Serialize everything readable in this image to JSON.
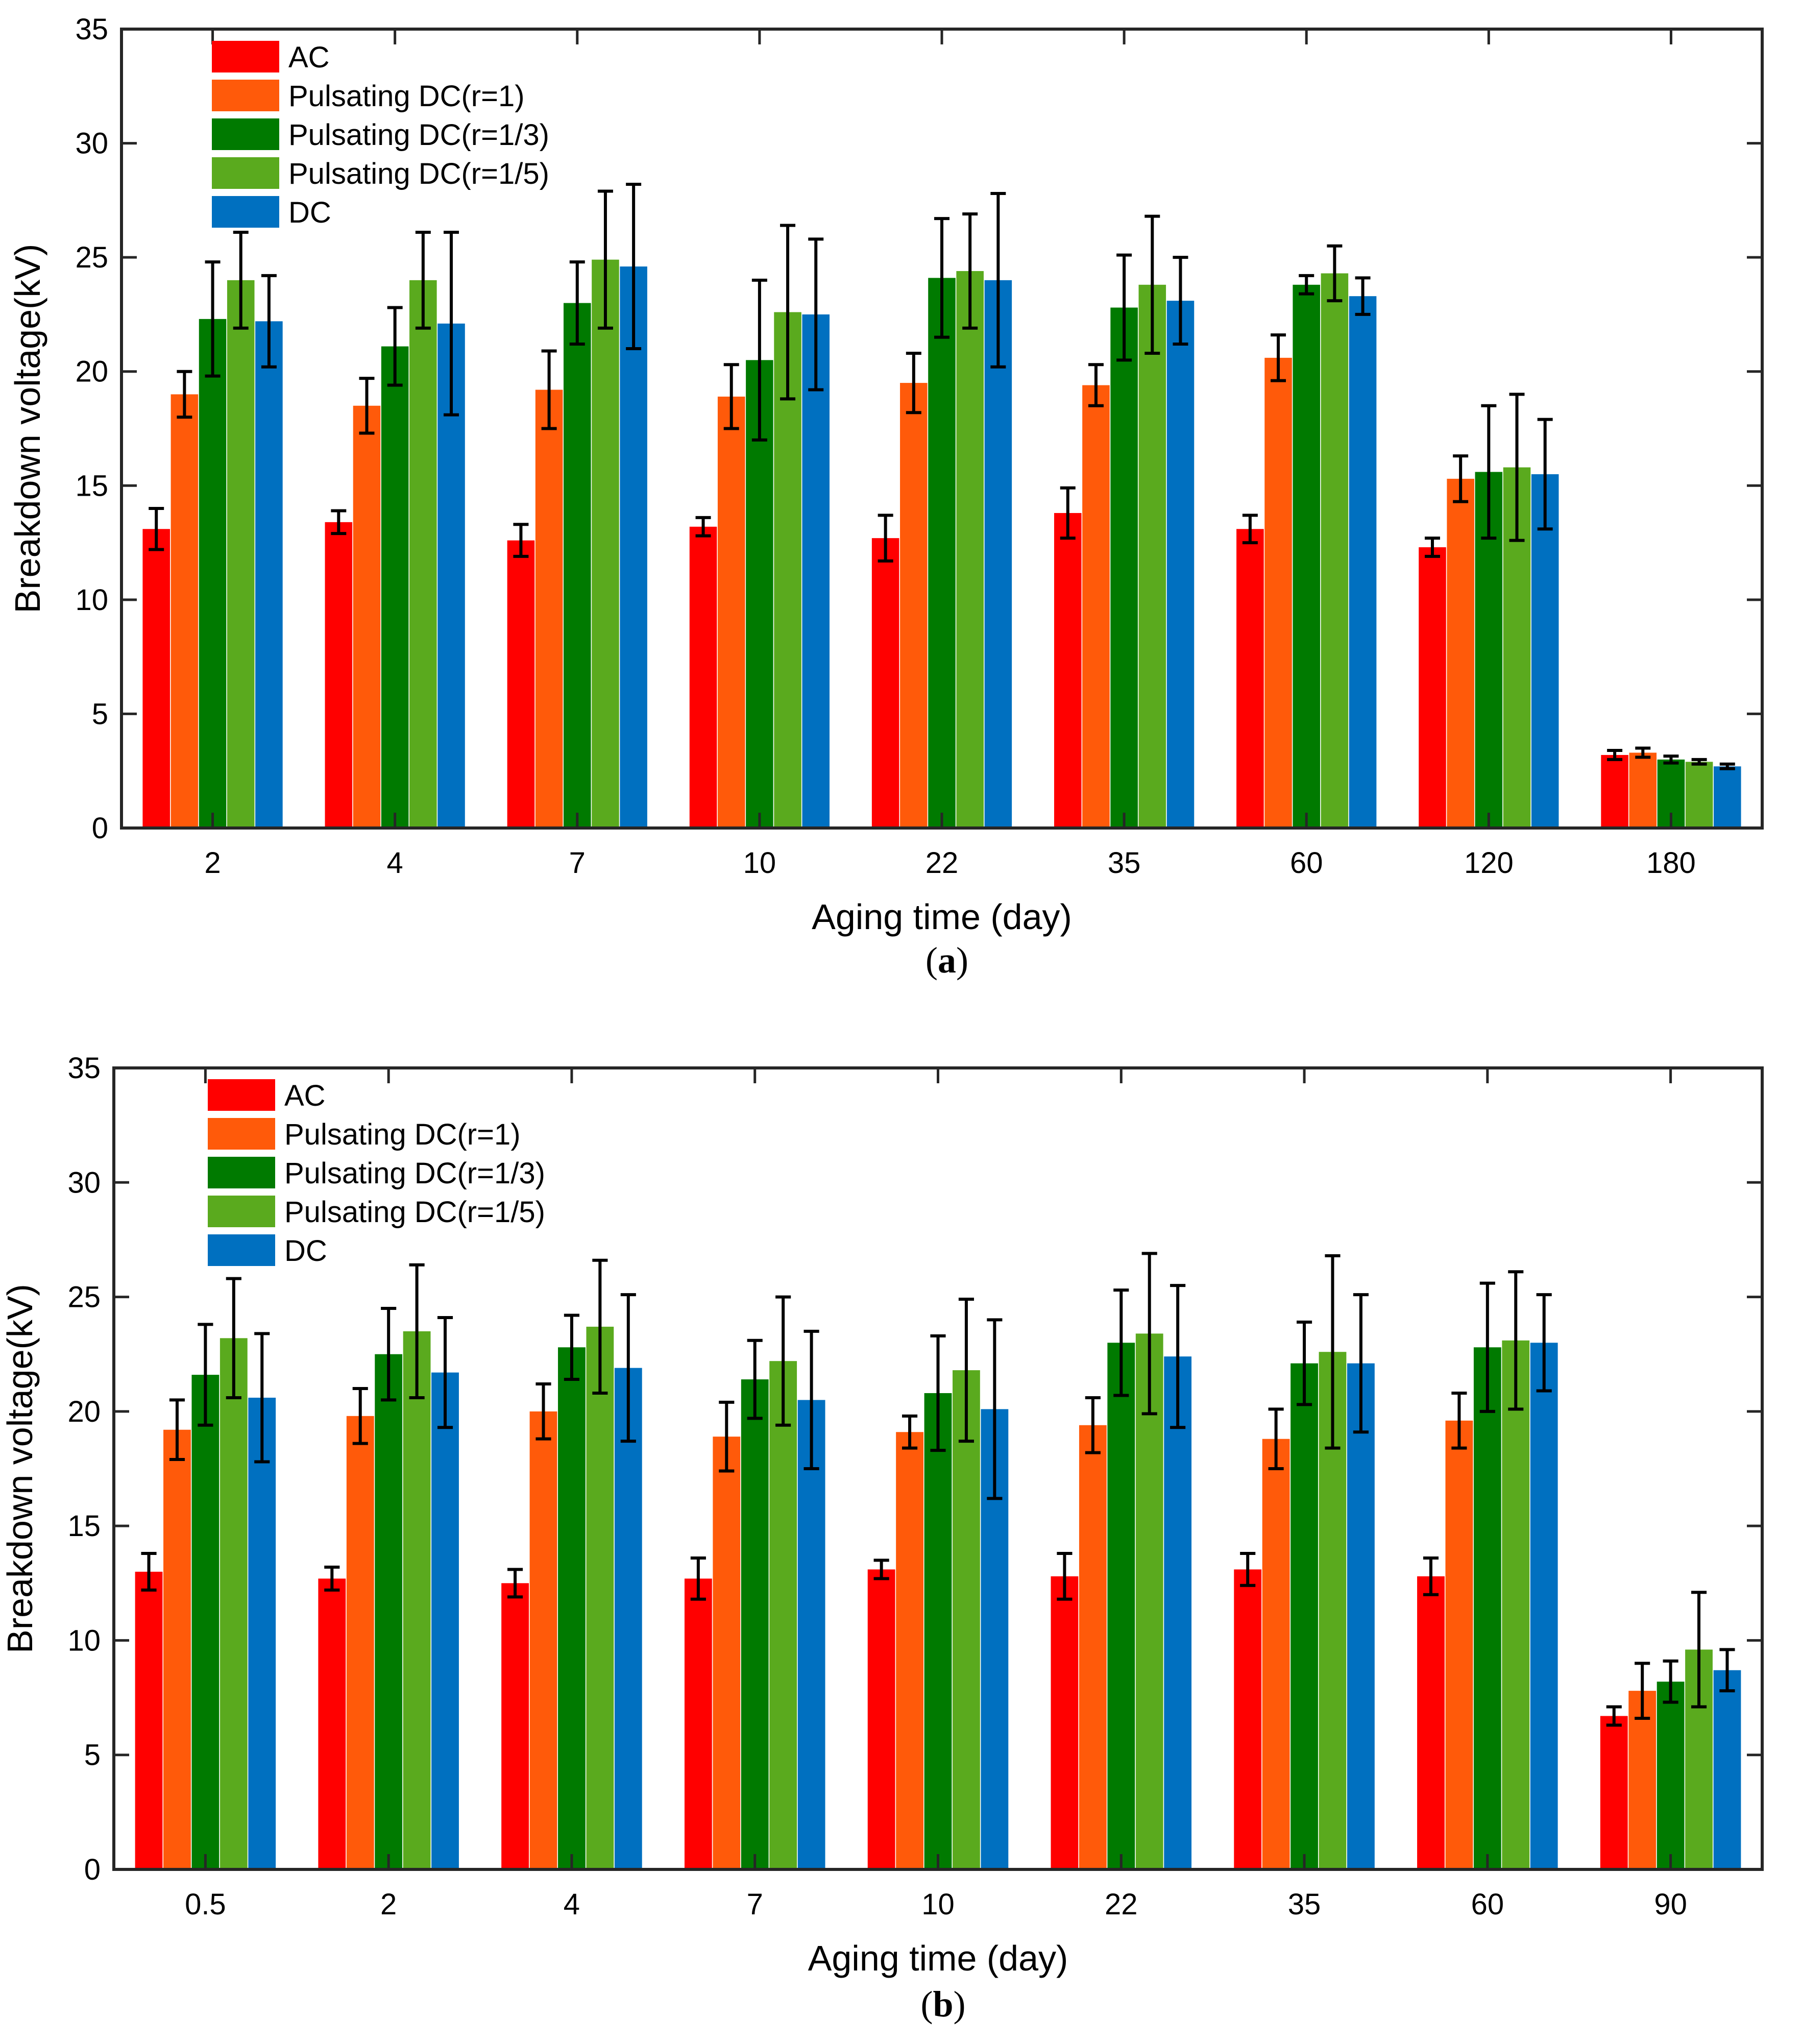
{
  "colors": {
    "AC": "#ff0000",
    "Pulsating DC(r=1)": "#ff5a0a",
    "Pulsating DC(r=1/3)": "#007a00",
    "Pulsating DC(r=1/5)": "#5aaa1e",
    "DC": "#0070c0"
  },
  "chart_data": [
    {
      "type": "bar",
      "caption_open": "(",
      "caption_letter": "a",
      "caption_close": ")",
      "xlabel": "Aging time (day)",
      "ylabel": "Breakdown voltage(kV)",
      "ylim": [
        0,
        35
      ],
      "yticks": [
        "0",
        "5",
        "10",
        "15",
        "20",
        "25",
        "30",
        "35"
      ],
      "legend_position": "top-left",
      "categories": [
        "2",
        "4",
        "7",
        "10",
        "22",
        "35",
        "60",
        "120",
        "180"
      ],
      "series": [
        {
          "name": "AC",
          "values": [
            13.1,
            13.4,
            12.6,
            13.2,
            12.7,
            13.8,
            13.1,
            12.3,
            3.2
          ],
          "errors": [
            0.9,
            0.5,
            0.7,
            0.4,
            1.0,
            1.1,
            0.6,
            0.4,
            0.2
          ]
        },
        {
          "name": "Pulsating DC(r=1)",
          "values": [
            19.0,
            18.5,
            19.2,
            18.9,
            19.5,
            19.4,
            20.6,
            15.3,
            3.3
          ],
          "errors": [
            1.0,
            1.2,
            1.7,
            1.4,
            1.3,
            0.9,
            1.0,
            1.0,
            0.2
          ]
        },
        {
          "name": "Pulsating DC(r=1/3)",
          "values": [
            22.3,
            21.1,
            23.0,
            20.5,
            24.1,
            22.8,
            23.8,
            15.6,
            3.0
          ],
          "errors": [
            2.5,
            1.7,
            1.8,
            3.5,
            2.6,
            2.3,
            0.4,
            2.9,
            0.15
          ]
        },
        {
          "name": "Pulsating DC(r=1/5)",
          "values": [
            24.0,
            24.0,
            24.9,
            22.6,
            24.4,
            23.8,
            24.3,
            15.8,
            2.9
          ],
          "errors": [
            2.1,
            2.1,
            3.0,
            3.8,
            2.5,
            3.0,
            1.2,
            3.2,
            0.1
          ]
        },
        {
          "name": "DC",
          "values": [
            22.2,
            22.1,
            24.6,
            22.5,
            24.0,
            23.1,
            23.3,
            15.5,
            2.7
          ],
          "errors": [
            2.0,
            4.0,
            3.6,
            3.3,
            3.8,
            1.9,
            0.8,
            2.4,
            0.1
          ]
        }
      ]
    },
    {
      "type": "bar",
      "caption_open": "(",
      "caption_letter": "b",
      "caption_close": ")",
      "xlabel": "Aging time (day)",
      "ylabel": "Breakdown voltage(kV)",
      "ylim": [
        0,
        35
      ],
      "yticks": [
        "0",
        "5",
        "10",
        "15",
        "20",
        "25",
        "30",
        "35"
      ],
      "legend_position": "top-left",
      "categories": [
        "0.5",
        "2",
        "4",
        "7",
        "10",
        "22",
        "35",
        "60",
        "90"
      ],
      "series": [
        {
          "name": "AC",
          "values": [
            13.0,
            12.7,
            12.5,
            12.7,
            13.1,
            12.8,
            13.1,
            12.8,
            6.7
          ],
          "errors": [
            0.8,
            0.5,
            0.6,
            0.9,
            0.4,
            1.0,
            0.7,
            0.8,
            0.4
          ]
        },
        {
          "name": "Pulsating DC(r=1)",
          "values": [
            19.2,
            19.8,
            20.0,
            18.9,
            19.1,
            19.4,
            18.8,
            19.6,
            7.8
          ],
          "errors": [
            1.3,
            1.2,
            1.2,
            1.5,
            0.7,
            1.2,
            1.3,
            1.2,
            1.2
          ]
        },
        {
          "name": "Pulsating DC(r=1/3)",
          "values": [
            21.6,
            22.5,
            22.8,
            21.4,
            20.8,
            23.0,
            22.1,
            22.8,
            8.2
          ],
          "errors": [
            2.2,
            2.0,
            1.4,
            1.7,
            2.5,
            2.3,
            1.8,
            2.8,
            0.9
          ]
        },
        {
          "name": "Pulsating DC(r=1/5)",
          "values": [
            23.2,
            23.5,
            23.7,
            22.2,
            21.8,
            23.4,
            22.6,
            23.1,
            9.6
          ],
          "errors": [
            2.6,
            2.9,
            2.9,
            2.8,
            3.1,
            3.5,
            4.2,
            3.0,
            2.5
          ]
        },
        {
          "name": "DC",
          "values": [
            20.6,
            21.7,
            21.9,
            20.5,
            20.1,
            22.4,
            22.1,
            23.0,
            8.7
          ],
          "errors": [
            2.8,
            2.4,
            3.2,
            3.0,
            3.9,
            3.1,
            3.0,
            2.1,
            0.9
          ]
        }
      ]
    }
  ]
}
